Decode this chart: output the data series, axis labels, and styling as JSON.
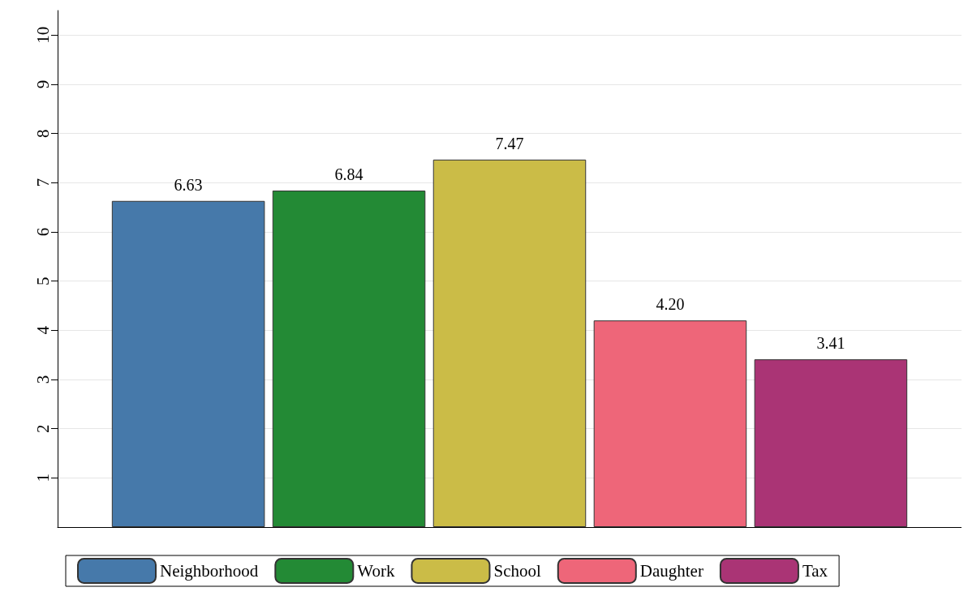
{
  "chart_data": {
    "type": "bar",
    "categories": [
      null
    ],
    "series": [
      {
        "name": "Neighborhood",
        "color": "#4679aa",
        "values": [
          6.63
        ],
        "value_labels": [
          "6.63"
        ]
      },
      {
        "name": "Work",
        "color": "#238a35",
        "values": [
          6.84
        ],
        "value_labels": [
          "6.84"
        ]
      },
      {
        "name": "School",
        "color": "#cbbc47",
        "values": [
          7.47
        ],
        "value_labels": [
          "7.47"
        ]
      },
      {
        "name": "Daughter",
        "color": "#ee6679",
        "values": [
          4.2
        ],
        "value_labels": [
          "4.20"
        ]
      },
      {
        "name": "Tax",
        "color": "#aa3475",
        "values": [
          3.41
        ],
        "value_labels": [
          "3.41"
        ]
      }
    ],
    "ylim": [
      0,
      10.5
    ],
    "yticks": [
      1,
      2,
      3,
      4,
      5,
      6,
      7,
      8,
      9,
      10
    ],
    "grid": "y",
    "legend": "bottom"
  }
}
